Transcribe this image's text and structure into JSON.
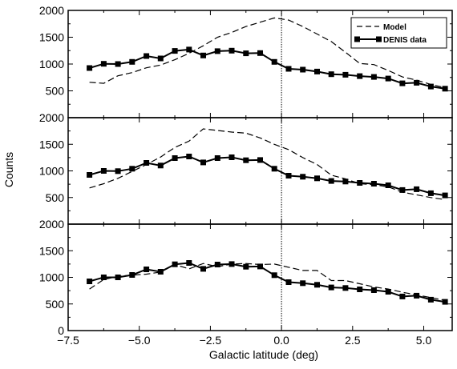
{
  "chart_data": {
    "type": "line",
    "xlabel": "Galactic latitude (deg)",
    "ylabel": "Counts",
    "xlim": [
      -7.5,
      6.0
    ],
    "ylim": [
      0,
      2000
    ],
    "x_ticks": [
      -7.5,
      -5.0,
      -2.5,
      0.0,
      2.5,
      5.0
    ],
    "x_tick_labels": [
      "−7.5",
      "−5.0",
      "−2.5",
      "0.0",
      "2.5",
      "5.0"
    ],
    "y_ticks": [
      0,
      500,
      1000,
      1500,
      2000
    ],
    "y_tick_labels": [
      "0",
      "500",
      "1000",
      "1500",
      "2000"
    ],
    "vertical_line_x": 0.0,
    "legend": {
      "placement": "top-right",
      "entries": [
        {
          "label": "Model",
          "style": "dashed"
        },
        {
          "label": "DENIS data",
          "style": "solid-square-markers"
        }
      ]
    },
    "panels": [
      {
        "series": [
          {
            "name": "Model",
            "x": [
              -6.75,
              -6.25,
              -5.75,
              -5.25,
              -4.75,
              -4.25,
              -3.75,
              -3.25,
              -2.75,
              -2.25,
              -1.75,
              -1.25,
              -0.75,
              -0.25,
              0.25,
              0.75,
              1.25,
              1.75,
              2.25,
              2.75,
              3.25,
              3.75,
              4.25,
              4.75,
              5.25,
              5.75
            ],
            "y": [
              660,
              640,
              780,
              840,
              930,
              980,
              1080,
              1200,
              1340,
              1500,
              1590,
              1700,
              1780,
              1860,
              1820,
              1700,
              1560,
              1420,
              1220,
              1010,
              990,
              880,
              760,
              700,
              620,
              560
            ]
          },
          {
            "name": "DENIS data",
            "x": [
              -6.75,
              -6.25,
              -5.75,
              -5.25,
              -4.75,
              -4.25,
              -3.75,
              -3.25,
              -2.75,
              -2.25,
              -1.75,
              -1.25,
              -0.75,
              -0.25,
              0.25,
              0.75,
              1.25,
              1.75,
              2.25,
              2.75,
              3.25,
              3.75,
              4.25,
              4.75,
              5.25,
              5.75
            ],
            "y": [
              925,
              1005,
              1000,
              1040,
              1150,
              1105,
              1245,
              1270,
              1160,
              1240,
              1250,
              1200,
              1205,
              1040,
              910,
              895,
              860,
              810,
              800,
              775,
              760,
              730,
              640,
              650,
              580,
              540
            ]
          }
        ]
      },
      {
        "series": [
          {
            "name": "Model",
            "x": [
              -6.75,
              -6.25,
              -5.75,
              -5.25,
              -4.75,
              -4.25,
              -3.75,
              -3.25,
              -2.75,
              -2.25,
              -1.75,
              -1.25,
              -0.75,
              -0.25,
              0.25,
              0.75,
              1.25,
              1.75,
              2.25,
              2.75,
              3.25,
              3.75,
              4.25,
              4.75,
              5.25,
              5.75
            ],
            "y": [
              680,
              760,
              860,
              990,
              1120,
              1260,
              1440,
              1560,
              1790,
              1760,
              1730,
              1710,
              1620,
              1500,
              1400,
              1250,
              1120,
              920,
              850,
              760,
              740,
              700,
              600,
              550,
              500,
              460
            ]
          },
          {
            "name": "DENIS data",
            "x": [
              -6.75,
              -6.25,
              -5.75,
              -5.25,
              -4.75,
              -4.25,
              -3.75,
              -3.25,
              -2.75,
              -2.25,
              -1.75,
              -1.25,
              -0.75,
              -0.25,
              0.25,
              0.75,
              1.25,
              1.75,
              2.25,
              2.75,
              3.25,
              3.75,
              4.25,
              4.75,
              5.25,
              5.75
            ],
            "y": [
              925,
              1000,
              995,
              1040,
              1150,
              1100,
              1240,
              1270,
              1160,
              1240,
              1255,
              1200,
              1205,
              1040,
              910,
              890,
              860,
              810,
              800,
              775,
              760,
              730,
              640,
              655,
              580,
              540
            ]
          }
        ]
      },
      {
        "series": [
          {
            "name": "Model",
            "x": [
              -6.75,
              -6.25,
              -5.75,
              -5.25,
              -4.75,
              -4.25,
              -3.75,
              -3.25,
              -2.75,
              -2.25,
              -1.75,
              -1.25,
              -0.75,
              -0.25,
              0.25,
              0.75,
              1.25,
              1.75,
              2.25,
              2.75,
              3.25,
              3.75,
              4.25,
              4.75,
              5.25,
              5.75
            ],
            "y": [
              780,
              960,
              1020,
              1040,
              1060,
              1100,
              1240,
              1160,
              1260,
              1200,
              1250,
              1260,
              1240,
              1250,
              1190,
              1130,
              1130,
              940,
              940,
              880,
              820,
              780,
              720,
              670,
              620,
              570
            ]
          },
          {
            "name": "DENIS data",
            "x": [
              -6.75,
              -6.25,
              -5.75,
              -5.25,
              -4.75,
              -4.25,
              -3.75,
              -3.25,
              -2.75,
              -2.25,
              -1.75,
              -1.25,
              -0.75,
              -0.25,
              0.25,
              0.75,
              1.25,
              1.75,
              2.25,
              2.75,
              3.25,
              3.75,
              4.25,
              4.75,
              5.25,
              5.75
            ],
            "y": [
              925,
              1000,
              1000,
              1045,
              1150,
              1105,
              1245,
              1270,
              1160,
              1240,
              1250,
              1200,
              1205,
              1040,
              910,
              890,
              860,
              810,
              800,
              775,
              760,
              730,
              640,
              655,
              580,
              540
            ]
          }
        ]
      }
    ]
  }
}
